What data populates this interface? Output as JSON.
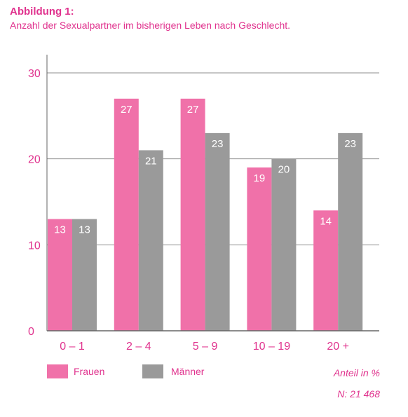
{
  "figure": {
    "title": "Abbildung 1:",
    "subtitle": "Anzahl der Sexualpartner im bisherigen Leben nach Geschlecht.",
    "note_unit": "Anteil in %",
    "note_n": "N: 21 468"
  },
  "colors": {
    "frauen": "#f071a9",
    "maenner": "#9a9a9a",
    "accent": "#e0338e",
    "grid": "#8c8c8c",
    "axis": "#666666"
  },
  "chart_data": {
    "type": "bar",
    "categories": [
      "0 – 1",
      "2 – 4",
      "5 – 9",
      "10 – 19",
      "20 +"
    ],
    "series": [
      {
        "name": "Frauen",
        "values": [
          13,
          27,
          27,
          19,
          14
        ]
      },
      {
        "name": "Männer",
        "values": [
          13,
          21,
          23,
          20,
          23
        ]
      }
    ],
    "yticks": [
      "0",
      "10",
      "20",
      "30"
    ],
    "ylim": [
      0,
      30
    ],
    "grid": true,
    "legend": "bottom-left",
    "xlabel": "",
    "ylabel": ""
  }
}
